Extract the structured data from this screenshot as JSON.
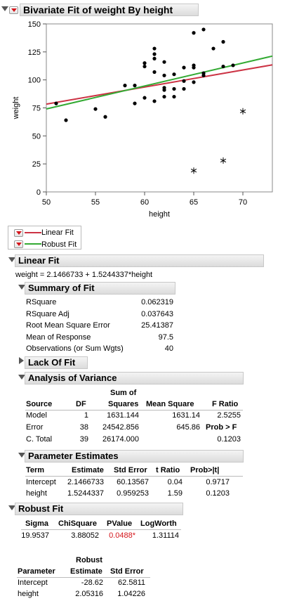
{
  "report": {
    "title": "Bivariate Fit of weight By height"
  },
  "chart_data": {
    "type": "scatter",
    "xlabel": "height",
    "ylabel": "weight",
    "xlim": [
      50,
      73
    ],
    "ylim": [
      0,
      150
    ],
    "x_ticks": [
      "50",
      "55",
      "60",
      "65",
      "70"
    ],
    "y_ticks": [
      "0",
      "25",
      "50",
      "75",
      "100",
      "125",
      "150"
    ],
    "series": [
      {
        "marker": "dot",
        "points": [
          [
            51,
            79
          ],
          [
            52,
            64
          ],
          [
            55,
            74
          ],
          [
            56,
            67
          ],
          [
            58,
            95
          ],
          [
            59,
            79
          ],
          [
            59,
            95
          ],
          [
            60,
            84
          ],
          [
            60,
            112
          ],
          [
            60,
            115
          ],
          [
            61,
            81
          ],
          [
            61,
            107
          ],
          [
            61,
            119
          ],
          [
            61,
            123
          ],
          [
            61,
            128
          ],
          [
            62,
            85
          ],
          [
            62,
            91
          ],
          [
            62,
            93
          ],
          [
            62,
            104
          ],
          [
            62,
            116
          ],
          [
            63,
            85
          ],
          [
            63,
            92
          ],
          [
            63,
            105
          ],
          [
            64,
            92
          ],
          [
            64,
            99
          ],
          [
            64,
            111
          ],
          [
            65,
            98
          ],
          [
            65,
            111
          ],
          [
            65,
            113
          ],
          [
            65,
            142
          ],
          [
            66,
            104
          ],
          [
            66,
            106
          ],
          [
            66,
            145
          ],
          [
            67,
            128
          ],
          [
            68,
            112
          ],
          [
            68,
            134
          ],
          [
            69,
            113
          ]
        ]
      },
      {
        "marker": "asterisk",
        "points": [
          [
            65,
            19
          ],
          [
            68,
            28
          ],
          [
            70,
            72
          ]
        ]
      },
      {
        "name": "Linear Fit",
        "intercept": 2.1466733,
        "slope": 1.5244337,
        "color": "#cc3344"
      },
      {
        "name": "Robust Fit",
        "intercept": -28.62,
        "slope": 2.05316,
        "color": "#33aa33"
      }
    ]
  },
  "legend": {
    "linear_label": "Linear Fit",
    "robust_label": "Robust Fit"
  },
  "linear_fit": {
    "header": "Linear Fit",
    "equation": "weight = 2.1466733 + 1.5244337*height",
    "summary": {
      "header": "Summary of Fit",
      "rows": [
        {
          "label": "RSquare",
          "value": "0.062319"
        },
        {
          "label": "RSquare Adj",
          "value": "0.037643"
        },
        {
          "label": "Root Mean Square Error",
          "value": "25.41387"
        },
        {
          "label": "Mean of Response",
          "value": "97.5"
        },
        {
          "label": "Observations (or Sum Wgts)",
          "value": "40"
        }
      ]
    },
    "lack_of_fit": {
      "header": "Lack Of Fit"
    },
    "anova": {
      "header": "Analysis of Variance",
      "col_source": "Source",
      "col_df": "DF",
      "col_ss_top": "Sum of",
      "col_ss": "Squares",
      "col_ms": "Mean Square",
      "col_f": "F Ratio",
      "prob_f_label": "Prob > F",
      "rows": [
        {
          "source": "Model",
          "df": "1",
          "ss": "1631.144",
          "ms": "1631.14",
          "f": "2.5255"
        },
        {
          "source": "Error",
          "df": "38",
          "ss": "24542.856",
          "ms": "645.86"
        },
        {
          "source": "C. Total",
          "df": "39",
          "ss": "26174.000",
          "f": "0.1203"
        }
      ]
    },
    "params": {
      "header": "Parameter Estimates",
      "cols": [
        "Term",
        "Estimate",
        "Std Error",
        "t Ratio",
        "Prob>|t|"
      ],
      "rows": [
        {
          "term": "Intercept",
          "estimate": "2.1466733",
          "stderr": "60.13567",
          "t": "0.04",
          "p": "0.9717"
        },
        {
          "term": "height",
          "estimate": "1.5244337",
          "stderr": "0.959253",
          "t": "1.59",
          "p": "0.1203"
        }
      ]
    }
  },
  "robust_fit": {
    "header": "Robust Fit",
    "cols": [
      "Sigma",
      "ChiSquare",
      "PValue",
      "LogWorth"
    ],
    "values": {
      "sigma": "19.9537",
      "chisq": "3.88052",
      "pvalue": "0.0488*",
      "logworth": "1.31114"
    },
    "param_cols_top": "Robust",
    "param_cols": [
      "Parameter",
      "Estimate",
      "Std Error"
    ],
    "rows": [
      {
        "param": "Intercept",
        "estimate": "-28.62",
        "stderr": "62.5811"
      },
      {
        "param": "height",
        "estimate": "2.05316",
        "stderr": "1.04226"
      }
    ]
  }
}
